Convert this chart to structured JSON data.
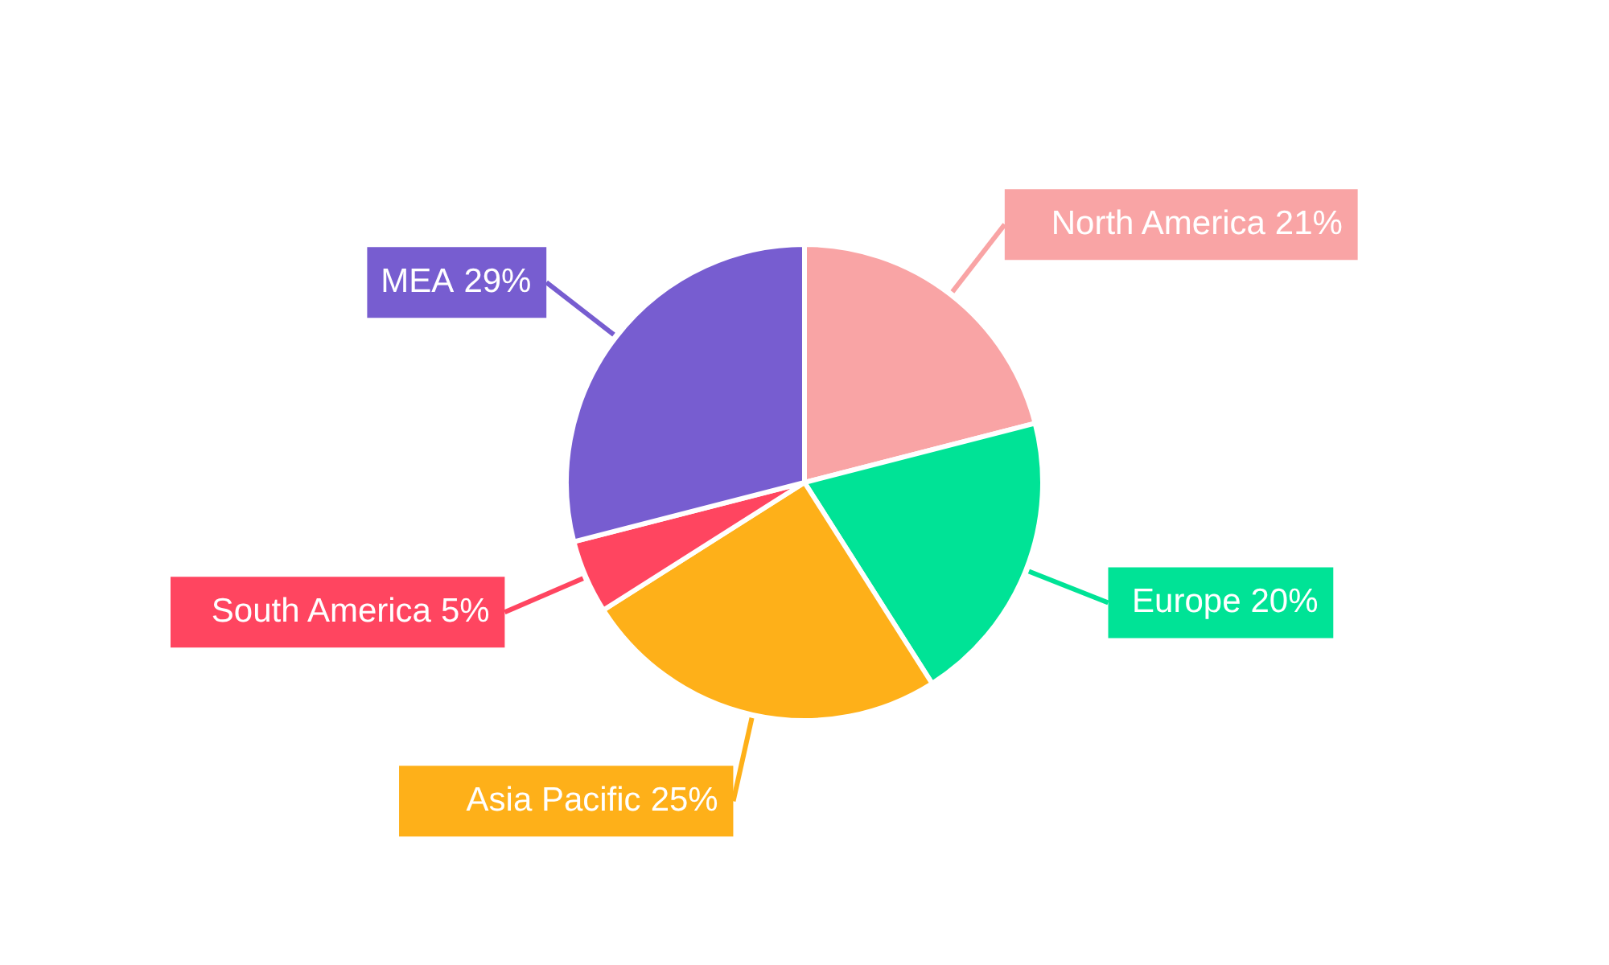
{
  "chart_data": {
    "type": "pie",
    "categories": [
      "North America",
      "Europe",
      "Asia Pacific",
      "South America",
      "MEA"
    ],
    "values": [
      21,
      20,
      25,
      5,
      29
    ],
    "colors": [
      "#f9a4a5",
      "#00e396",
      "#feb019",
      "#ff4560",
      "#775dd0"
    ],
    "value_labels": [
      "21%",
      "20%",
      "25%",
      "5%",
      "29%"
    ]
  }
}
